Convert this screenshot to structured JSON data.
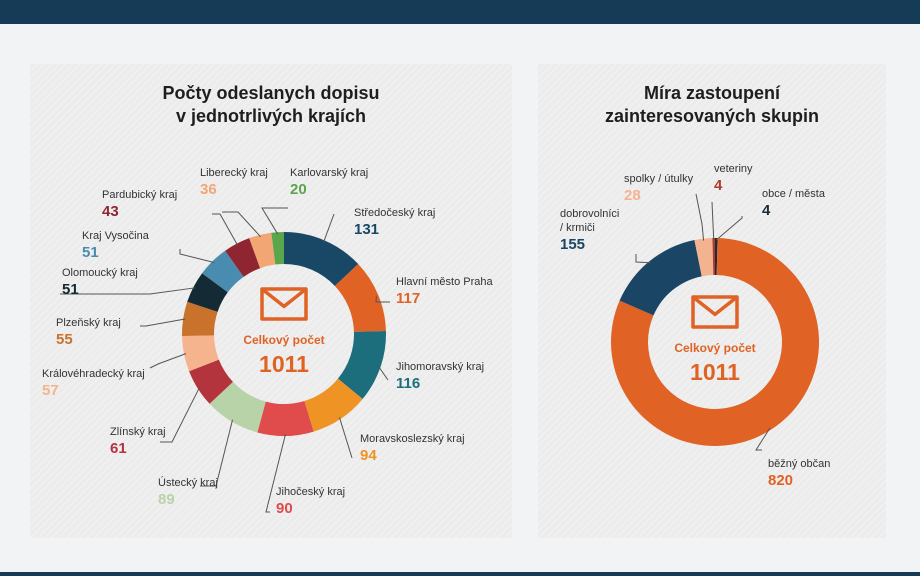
{
  "colors": {
    "accent": "#e06224",
    "header": "#163b57"
  },
  "icon": "envelope-icon",
  "chart_data": [
    {
      "type": "pie",
      "title": "Počty odeslanych dopisu v jednotrlivých krajích",
      "title_lines": [
        "Počty odeslanych dopisu",
        "v jednotrlivých krajích"
      ],
      "center_label": "Celkový počet",
      "center_total": "1011",
      "slices": [
        {
          "label": "Středočeský kraj",
          "value": 131,
          "color": "#184866"
        },
        {
          "label": "Hlavní město Praha",
          "value": 117,
          "color": "#e06224"
        },
        {
          "label": "Jihomoravský kraj",
          "value": 116,
          "color": "#1c6e7d"
        },
        {
          "label": "Moravskoslezský kraj",
          "value": 94,
          "color": "#ef9324"
        },
        {
          "label": "Jihočeský kraj",
          "value": 90,
          "color": "#e04b4c"
        },
        {
          "label": "Ústecký kraj",
          "value": 89,
          "color": "#b9d3a8"
        },
        {
          "label": "Zlínský kraj",
          "value": 61,
          "color": "#b3343d"
        },
        {
          "label": "Královéhradecký kraj",
          "value": 57,
          "color": "#f5b38e"
        },
        {
          "label": "Plzeňský kraj",
          "value": 55,
          "color": "#c8722c"
        },
        {
          "label": "Olomoucký kraj",
          "value": 51,
          "color": "#142b35"
        },
        {
          "label": "Kraj Vysočina",
          "value": 51,
          "color": "#4a8cb0"
        },
        {
          "label": "Pardubický kraj",
          "value": 43,
          "color": "#8f2530"
        },
        {
          "label": "Liberecký kraj",
          "value": 36,
          "color": "#f2a673"
        },
        {
          "label": "Karlovarský kraj",
          "value": 20,
          "color": "#5aa64b"
        }
      ]
    },
    {
      "type": "pie",
      "title": "Míra zastoupení zainteresovaných skupin",
      "title_lines": [
        "Míra zastoupení",
        "zainteresovaných skupin"
      ],
      "center_label": "Celkový počet",
      "center_total": "1011",
      "slices": [
        {
          "label": "obce / města",
          "value": 4,
          "color": "#1a2d3c"
        },
        {
          "label": "běžný občan",
          "value": 820,
          "color": "#e06224"
        },
        {
          "label": "dobrovolníci / krmiči",
          "label_lines": [
            "dobrovolníci",
            "/ krmiči"
          ],
          "value": 155,
          "color": "#1a4564"
        },
        {
          "label": "spolky / útulky",
          "value": 28,
          "color": "#f4b38f"
        },
        {
          "label": "veteriny",
          "value": 4,
          "color": "#b03a2e"
        }
      ]
    }
  ]
}
